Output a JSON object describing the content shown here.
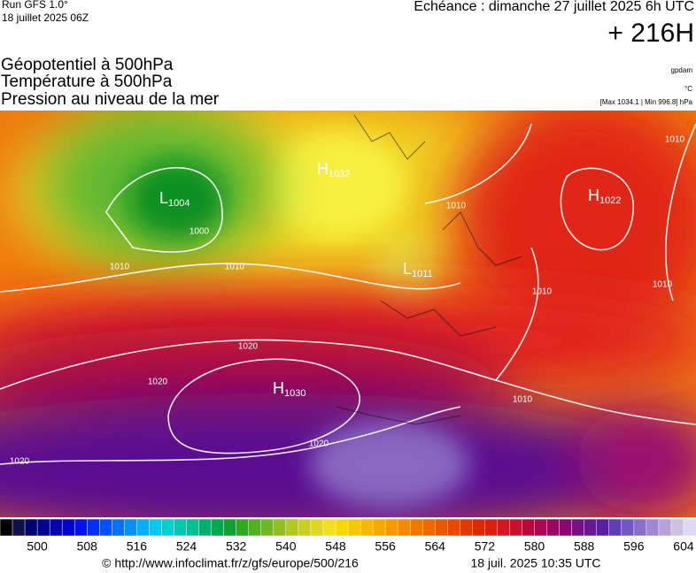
{
  "header": {
    "run": "Run GFS 1.0°",
    "run_date": "18 juillet 2025 06Z",
    "forecast": "Echéance : dimanche 27 juillet 2025 6h UTC",
    "lead": "+ 216H"
  },
  "titles": [
    "Géopotentiel à 500hPa",
    "Température à 500hPa",
    "Pression au niveau de la mer"
  ],
  "units": {
    "geopotential": "gpdam",
    "temperature": "°C",
    "pressure_range": "[Max 1034.1 | Min 996.8] hPa"
  },
  "map": {
    "centers": [
      {
        "type": "H",
        "value": "1022"
      },
      {
        "type": "H",
        "value": "1030"
      },
      {
        "type": "L",
        "value": "1004"
      },
      {
        "type": "H",
        "value": "1032"
      },
      {
        "type": "L",
        "value": "1011"
      }
    ],
    "isobar_labels": [
      "1000",
      "1010",
      "1010",
      "1010",
      "1020",
      "1020",
      "1020",
      "1020",
      "1010",
      "1010",
      "1010",
      "1010"
    ]
  },
  "colorbar": {
    "colors": [
      "#000000",
      "#10104a",
      "#000070",
      "#000090",
      "#0000b0",
      "#0000d0",
      "#0010f0",
      "#0030ff",
      "#0050ff",
      "#0070ff",
      "#0090ff",
      "#00b0ff",
      "#00c8f0",
      "#00d0d0",
      "#00c8b0",
      "#00c090",
      "#00b070",
      "#00a850",
      "#10a030",
      "#30a820",
      "#50b020",
      "#70b820",
      "#90c020",
      "#b0c820",
      "#c8d020",
      "#e0d820",
      "#f0e020",
      "#f8d800",
      "#f8c800",
      "#f8b800",
      "#f8a800",
      "#f89800",
      "#f88800",
      "#f07800",
      "#f06800",
      "#e85800",
      "#e84800",
      "#e03800",
      "#e02800",
      "#d82010",
      "#d01820",
      "#c81030",
      "#b80840",
      "#a80850",
      "#980860",
      "#880870",
      "#781080",
      "#681890",
      "#5820a0",
      "#6040b0",
      "#7058c0",
      "#8870c8",
      "#a088d0",
      "#b8a0d8",
      "#d0c0e0",
      "#e0d8f0"
    ],
    "labels": [
      500,
      508,
      516,
      524,
      532,
      540,
      548,
      556,
      564,
      572,
      580,
      588,
      596,
      604
    ]
  },
  "footer": {
    "url": "© http://www.infoclimat.fr/z/gfs/europe/500/216",
    "date": "18 juil. 2025 10:35 UTC"
  }
}
